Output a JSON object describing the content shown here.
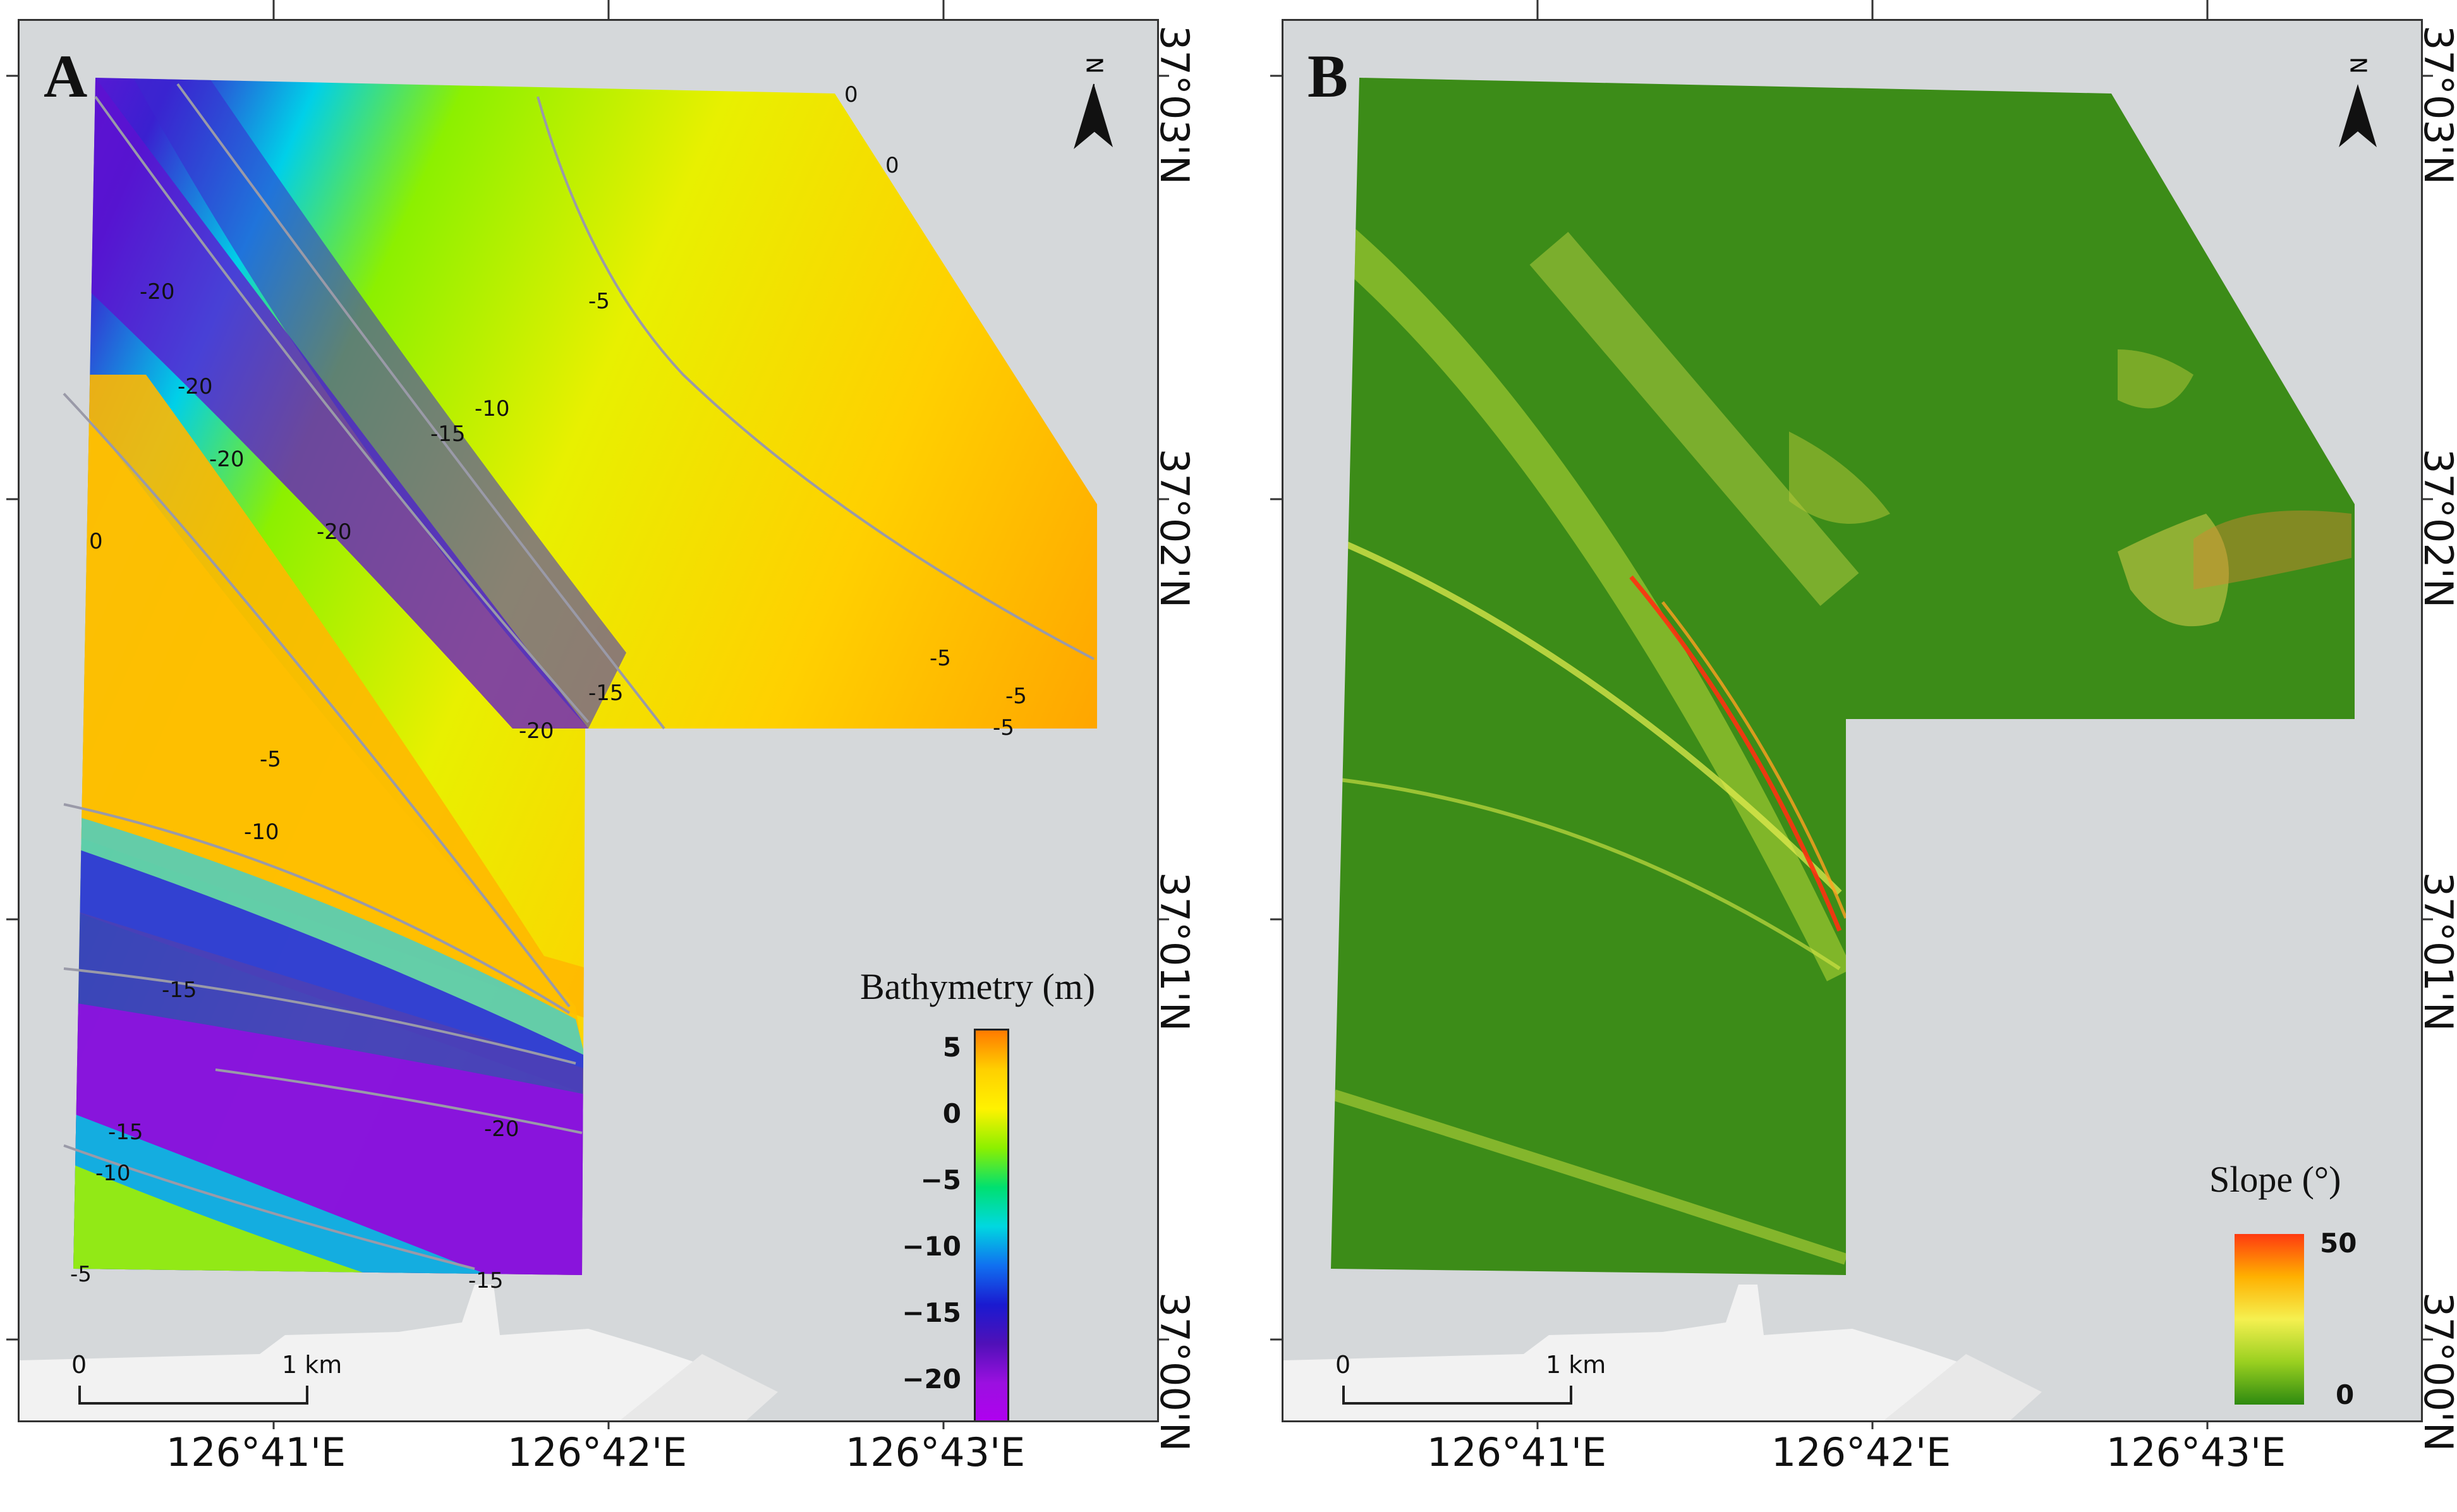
{
  "panels": [
    {
      "label": "A",
      "legend": {
        "title": "Bathymetry (m)",
        "ticks": [
          "5",
          "0",
          "−5",
          "−10",
          "−15",
          "−20"
        ],
        "colors": [
          "#ff7a00",
          "#ffd000",
          "#fff200",
          "#8cf000",
          "#00e070",
          "#00d8e0",
          "#1070f0",
          "#1a1ad0",
          "#5010b8",
          "#9b10e0",
          "#b000f0"
        ]
      },
      "contour_labels": [
        "0",
        "0",
        "-5",
        "-10",
        "-15",
        "-20",
        "-20",
        "-20",
        "-20",
        "0",
        "-15",
        "-20",
        "-5",
        "-10",
        "-15",
        "-20",
        "-15",
        "-10",
        "-5",
        "-15",
        "-5",
        "-5",
        "-5"
      ],
      "scalebar": {
        "start": "0",
        "end": "1 km"
      }
    },
    {
      "label": "B",
      "legend": {
        "title": "Slope (°)",
        "ticks": [
          "50",
          "0"
        ],
        "colors": [
          "#ff3a10",
          "#ffb000",
          "#f5f050",
          "#9ad020",
          "#2e8a10"
        ]
      },
      "scalebar": {
        "start": "0",
        "end": "1 km"
      }
    }
  ],
  "north_symbol": "N",
  "lon_ticks": [
    "126°41'E",
    "126°42'E",
    "126°43'E"
  ],
  "lat_ticks": [
    "37°03'N",
    "37°02'N",
    "37°01'N",
    "37°00'N"
  ],
  "colors": {
    "background": "#d5d8da",
    "land": "#f2f2f2",
    "contour": "#9a9aa8",
    "slope_base": "#3c8c18"
  }
}
